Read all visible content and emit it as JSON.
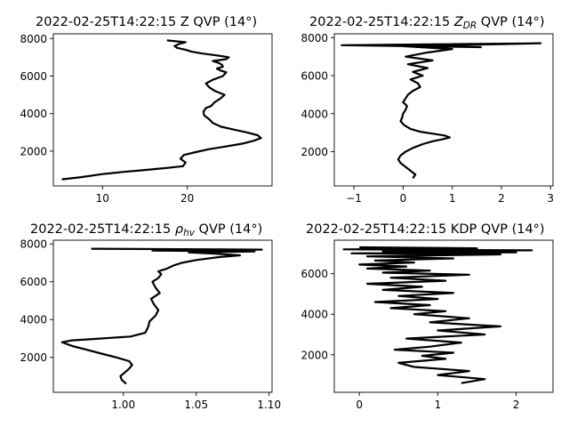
{
  "chart_data": [
    {
      "type": "line",
      "title": "2022-02-25T14:22:15 Z QVP (14°)",
      "title_main": "2022-02-25T14:22:15 Z QVP (14°)",
      "xlim": [
        4.2,
        30.0
      ],
      "ylim": [
        150,
        8250
      ],
      "xticks": [
        10,
        20
      ],
      "yticks": [
        2000,
        4000,
        6000,
        8000
      ],
      "series": [
        {
          "color": "#000000",
          "x": [
            5.2,
            7.5,
            10.0,
            12.5,
            15.0,
            17.5,
            19.5,
            19.8,
            19.2,
            19.6,
            21.0,
            22.5,
            24.5,
            26.5,
            27.8,
            28.7,
            28.3,
            27.0,
            25.5,
            24.0,
            23.0,
            22.6,
            22.0,
            21.9,
            22.2,
            22.8,
            23.2,
            23.9,
            24.4,
            23.3,
            22.6,
            22.2,
            23.0,
            24.2,
            24.6,
            23.9,
            23.5,
            24.2,
            24.1,
            23.7,
            23.0,
            24.6,
            24.9,
            23.5,
            21.8,
            20.5,
            19.8,
            18.8,
            18.5,
            19.0,
            19.8,
            17.6
          ],
          "y": [
            500,
            620,
            780,
            900,
            1000,
            1100,
            1200,
            1400,
            1600,
            1800,
            1950,
            2100,
            2250,
            2400,
            2550,
            2700,
            2850,
            3000,
            3150,
            3300,
            3500,
            3700,
            3900,
            4100,
            4300,
            4400,
            4600,
            4800,
            5000,
            5200,
            5400,
            5600,
            5800,
            6000,
            6200,
            6300,
            6400,
            6500,
            6600,
            6700,
            6800,
            6900,
            7000,
            7100,
            7200,
            7300,
            7400,
            7500,
            7600,
            7700,
            7800,
            7900
          ]
        }
      ]
    },
    {
      "type": "line",
      "title": "2022-02-25T14:22:15 Z_DR QVP (14°)",
      "title_pre": "2022-02-25T14:22:15 ",
      "title_sym": "Z",
      "title_sub": "DR",
      "title_post": " QVP (14°)",
      "xlim": [
        -1.4,
        3.05
      ],
      "ylim": [
        200,
        8200
      ],
      "xticks": [
        -1,
        0,
        1,
        2,
        3
      ],
      "yticks": [
        2000,
        4000,
        6000,
        8000
      ],
      "series": [
        {
          "color": "#000000",
          "x": [
            0.2,
            0.25,
            0.15,
            0.05,
            -0.05,
            -0.1,
            -0.05,
            0.05,
            0.2,
            0.4,
            0.6,
            0.8,
            0.95,
            0.85,
            0.6,
            0.35,
            0.15,
            0.02,
            -0.05,
            -0.02,
            0.0,
            0.05,
            0.08,
            0.0,
            0.05,
            0.1,
            0.2,
            0.35,
            0.3,
            0.15,
            0.4,
            0.2,
            0.5,
            0.1,
            0.6,
            0.05,
            0.45,
            1.0,
            0.0,
            2.8,
            -1.25,
            1.6
          ],
          "y": [
            600,
            800,
            1000,
            1200,
            1400,
            1600,
            1800,
            2000,
            2200,
            2400,
            2550,
            2650,
            2750,
            2850,
            2950,
            3050,
            3200,
            3400,
            3600,
            3800,
            4000,
            4200,
            4400,
            4600,
            4800,
            5000,
            5200,
            5400,
            5600,
            5800,
            6000,
            6200,
            6400,
            6600,
            6800,
            7000,
            7200,
            7400,
            7550,
            7700,
            7600,
            7500
          ]
        }
      ]
    },
    {
      "type": "line",
      "title": "2022-02-25T14:22:15 ρ_hv QVP (14°)",
      "title_pre": "2022-02-25T14:22:15 ",
      "title_sym": "ρ",
      "title_sub": "hv",
      "title_post": " QVP (14°)",
      "xlim": [
        0.952,
        1.102
      ],
      "ylim": [
        150,
        8200
      ],
      "xticks": [
        1.0,
        1.05,
        1.1
      ],
      "xtick_labels": [
        "1.00",
        "1.05",
        "1.10"
      ],
      "yticks": [
        2000,
        4000,
        6000,
        8000
      ],
      "series": [
        {
          "color": "#000000",
          "x": [
            1.002,
            0.999,
            0.998,
            1.001,
            1.004,
            1.006,
            1.004,
            0.995,
            0.985,
            0.975,
            0.965,
            0.958,
            0.965,
            0.985,
            1.005,
            1.015,
            1.017,
            1.018,
            1.022,
            1.024,
            1.021,
            1.019,
            1.025,
            1.022,
            1.02,
            1.024,
            1.026,
            1.024,
            1.03,
            1.034,
            1.04,
            1.05,
            1.065,
            1.08,
            1.06,
            1.045,
            1.09,
            1.02,
            1.095,
            0.978
          ],
          "y": [
            600,
            800,
            1000,
            1200,
            1400,
            1600,
            1800,
            2000,
            2200,
            2400,
            2600,
            2800,
            2900,
            3000,
            3100,
            3300,
            3600,
            3900,
            4200,
            4500,
            4800,
            5100,
            5400,
            5700,
            6000,
            6200,
            6400,
            6550,
            6700,
            6850,
            7000,
            7150,
            7300,
            7400,
            7500,
            7550,
            7600,
            7650,
            7700,
            7750
          ]
        }
      ]
    },
    {
      "type": "line",
      "title": "2022-02-25T14:22:15 KDP QVP (14°)",
      "title_main": "2022-02-25T14:22:15 KDP QVP (14°)",
      "xlim": [
        -0.32,
        2.47
      ],
      "ylim": [
        150,
        7650
      ],
      "xticks": [
        0,
        1,
        2
      ],
      "yticks": [
        2000,
        4000,
        6000
      ],
      "series": [
        {
          "color": "#000000",
          "x": [
            1.3,
            1.6,
            1.0,
            1.4,
            0.7,
            0.5,
            1.1,
            0.8,
            1.2,
            0.45,
            0.9,
            1.3,
            0.6,
            1.6,
            1.0,
            1.8,
            0.9,
            1.4,
            0.7,
            1.1,
            0.4,
            0.9,
            0.2,
            1.0,
            0.5,
            1.2,
            0.3,
            0.8,
            0.1,
            1.1,
            0.4,
            1.4,
            0.3,
            0.9,
            0.1,
            0.6,
            0.0,
            0.7,
            0.2,
            1.2,
            0.1,
            1.8,
            -0.1,
            2.0,
            0.3,
            2.2,
            -0.2,
            1.5,
            0.0
          ],
          "y": [
            600,
            800,
            1000,
            1200,
            1400,
            1600,
            1800,
            1950,
            2100,
            2250,
            2400,
            2600,
            2800,
            3000,
            3200,
            3400,
            3600,
            3800,
            4000,
            4150,
            4300,
            4450,
            4600,
            4750,
            4900,
            5050,
            5200,
            5350,
            5500,
            5650,
            5800,
            5950,
            6050,
            6150,
            6250,
            6350,
            6450,
            6550,
            6650,
            6750,
            6850,
            6950,
            7000,
            7050,
            7100,
            7150,
            7200,
            7250,
            7300
          ]
        }
      ]
    }
  ]
}
